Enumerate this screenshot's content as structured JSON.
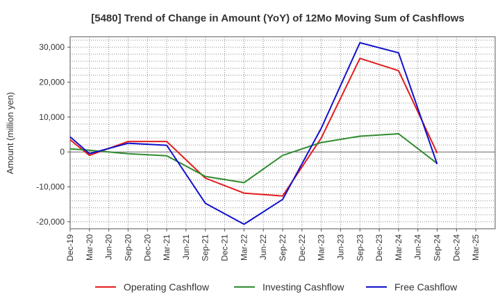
{
  "chart_data": {
    "type": "line",
    "title": "[5480]  Trend of Change in Amount (YoY) of 12Mo Moving Sum of Cashflows",
    "xlabel": "",
    "ylabel": "Amount (million yen)",
    "categories": [
      "Dec-19",
      "Mar-20",
      "Jun-20",
      "Sep-20",
      "Dec-20",
      "Mar-21",
      "Jun-21",
      "Sep-21",
      "Dec-21",
      "Mar-22",
      "Jun-22",
      "Sep-22",
      "Dec-22",
      "Mar-23",
      "Jun-23",
      "Sep-23",
      "Dec-23",
      "Mar-24",
      "Jun-24",
      "Sep-24",
      "Dec-24",
      "Mar-25"
    ],
    "ylim": [
      -22000,
      33000
    ],
    "yticks": [
      -20000,
      -10000,
      0,
      10000,
      20000,
      30000
    ],
    "ytick_labels": [
      "-20,000",
      "-10,000",
      "0",
      "10,000",
      "20,000",
      "30,000"
    ],
    "grid": true,
    "legend_position": "bottom",
    "series": [
      {
        "name": "Operating Cashflow",
        "color": "#e31a1c",
        "values": [
          3500,
          -1000,
          null,
          3000,
          null,
          3000,
          null,
          -7500,
          null,
          -11800,
          null,
          -12600,
          null,
          4000,
          null,
          26800,
          null,
          23300,
          null,
          -300,
          null,
          null
        ]
      },
      {
        "name": "Investing Cashflow",
        "color": "#2e8b2e",
        "values": [
          900,
          500,
          null,
          -500,
          null,
          -1100,
          null,
          -7000,
          null,
          -8800,
          null,
          -1000,
          null,
          2700,
          null,
          4500,
          null,
          5200,
          null,
          -3300,
          null,
          null
        ]
      },
      {
        "name": "Free Cashflow",
        "color": "#1010cc",
        "values": [
          4300,
          -500,
          null,
          2500,
          null,
          1900,
          null,
          -14700,
          null,
          -20700,
          null,
          -13600,
          null,
          6800,
          null,
          31300,
          null,
          28400,
          null,
          -3500,
          null,
          null
        ]
      }
    ]
  }
}
